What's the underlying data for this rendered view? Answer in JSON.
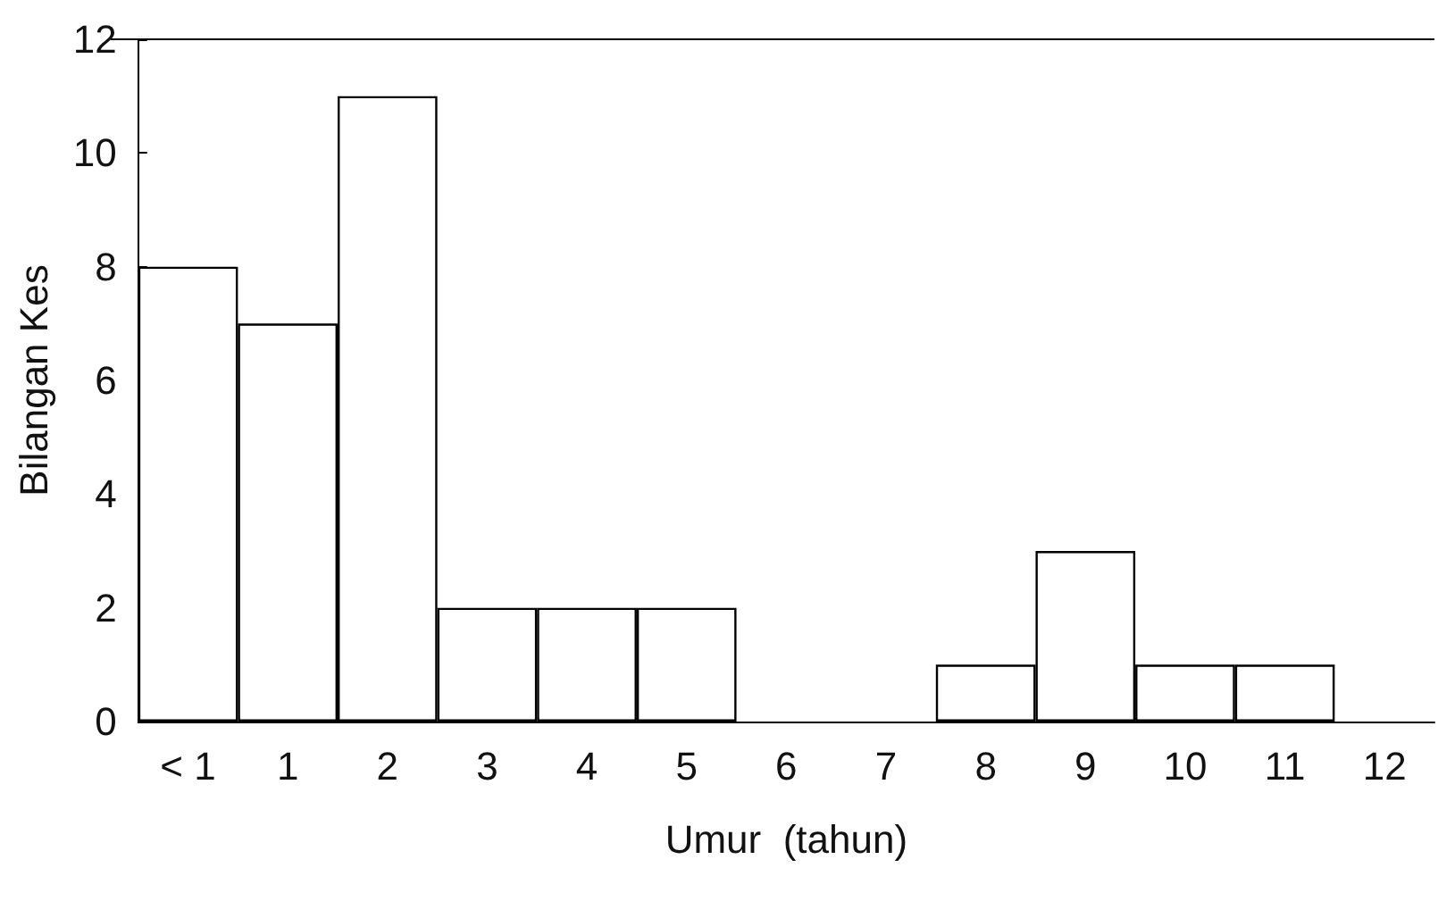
{
  "chart_data": {
    "type": "bar",
    "xlabel": "Umur  (tahun)",
    "ylabel": "Bilangan Kes",
    "categories": [
      "< 1",
      "1",
      "2",
      "3",
      "4",
      "5",
      "6",
      "7",
      "8",
      "9",
      "10",
      "11",
      "12"
    ],
    "values": [
      8,
      7,
      11,
      2,
      2,
      2,
      0,
      0,
      1,
      3,
      1,
      1,
      0
    ],
    "color": "#ffffff",
    "ylim": [
      0,
      12
    ],
    "yticks": [
      0,
      2,
      4,
      6,
      8,
      10,
      12
    ],
    "grid": false
  }
}
